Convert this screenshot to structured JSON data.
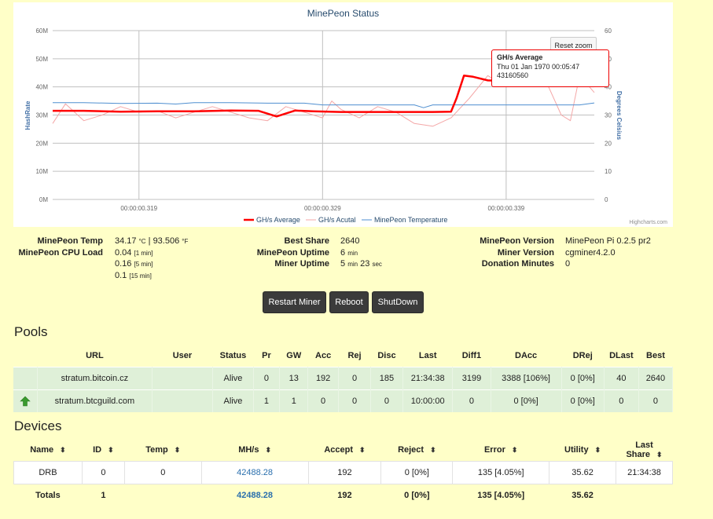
{
  "chart": {
    "title": "MinePeon Status",
    "credits": "Highcharts.com",
    "reset_zoom_label": "Reset zoom",
    "tooltip": {
      "series": "GH/s Average",
      "time": "Thu 01 Jan 1970 00:05:47",
      "value": "43160560"
    }
  },
  "chart_data": {
    "type": "line",
    "title": "MinePeon Status",
    "xlabel": "",
    "ylabel": "HashRate",
    "y2label": "Degrees Celsius",
    "x_ticks": [
      "00:00:00.319",
      "00:00:00.329",
      "00:00:00.339"
    ],
    "y_ticks": [
      "0M",
      "10M",
      "20M",
      "30M",
      "40M",
      "50M",
      "60M"
    ],
    "y2_ticks": [
      "0",
      "10",
      "20",
      "30",
      "40",
      "50",
      "60"
    ],
    "ylim": [
      0,
      60000000
    ],
    "y2lim": [
      0,
      60
    ],
    "xlim": [
      0.3143,
      0.3438
    ],
    "grid": true,
    "legend_placement": "bottom",
    "colors": {
      "average": "#ff0000",
      "actual": "#f4a7a7",
      "temperature": "#4f8fd0"
    },
    "series": [
      {
        "name": "GH/s Average",
        "axis": "left",
        "x": [
          0.3143,
          0.316,
          0.318,
          0.32,
          0.322,
          0.324,
          0.3255,
          0.3265,
          0.3275,
          0.3285,
          0.33,
          0.332,
          0.334,
          0.335,
          0.336,
          0.3363,
          0.3367,
          0.3372,
          0.338,
          0.3392,
          0.3405,
          0.342,
          0.3438
        ],
        "values": [
          31500000,
          31500000,
          31200000,
          31300000,
          31300000,
          31600000,
          31500000,
          29500000,
          31600000,
          31300000,
          31100000,
          31100000,
          31100000,
          31100000,
          31200000,
          36000000,
          44000000,
          43600000,
          42300000,
          42000000,
          42000000,
          42300000,
          43160560
        ]
      },
      {
        "name": "GH/s Acutal",
        "axis": "left",
        "x": [
          0.3143,
          0.315,
          0.316,
          0.317,
          0.318,
          0.319,
          0.32,
          0.321,
          0.322,
          0.323,
          0.324,
          0.325,
          0.326,
          0.327,
          0.328,
          0.329,
          0.3295,
          0.33,
          0.331,
          0.332,
          0.333,
          0.334,
          0.335,
          0.336,
          0.337,
          0.338,
          0.339,
          0.34,
          0.341,
          0.342,
          0.3425,
          0.343,
          0.3438
        ],
        "values": [
          27000000,
          34000000,
          28000000,
          30000000,
          33000000,
          31000000,
          31500000,
          29000000,
          31000000,
          33000000,
          31000000,
          29000000,
          28000000,
          33000000,
          31000000,
          29000000,
          35000000,
          32000000,
          29000000,
          33000000,
          31000000,
          27000000,
          26000000,
          29000000,
          36000000,
          44000000,
          40000000,
          42000000,
          44500000,
          30000000,
          28000000,
          44000000,
          38000000
        ]
      },
      {
        "name": "MinePeon Temperature",
        "axis": "right",
        "x": [
          0.3143,
          0.316,
          0.318,
          0.32,
          0.321,
          0.322,
          0.324,
          0.326,
          0.328,
          0.329,
          0.33,
          0.332,
          0.334,
          0.3345,
          0.335,
          0.336,
          0.338,
          0.34,
          0.342,
          0.343,
          0.3438
        ],
        "values": [
          34.4,
          34.4,
          34.1,
          34.2,
          33.9,
          34.4,
          34.4,
          34.2,
          34.2,
          33.6,
          33.6,
          33.6,
          33.6,
          32.6,
          33.6,
          33.6,
          33.6,
          33.6,
          33.6,
          33.6,
          34.3
        ]
      }
    ]
  },
  "stats": {
    "temp_label": "MinePeon Temp",
    "temp_c": "34.17",
    "temp_c_unit": "°C",
    "temp_sep": "|",
    "temp_f": "93.506",
    "temp_f_unit": "°F",
    "cpu_label": "MinePeon CPU Load",
    "cpu_1": "0.04",
    "cpu_1_unit": "[1 min]",
    "cpu_5": "0.16",
    "cpu_5_unit": "[5 min]",
    "cpu_15": "0.1",
    "cpu_15_unit": "[15 min]",
    "best_share_label": "Best Share",
    "best_share": "2640",
    "uptime_label": "MinePeon Uptime",
    "uptime_value": "6",
    "uptime_unit": "min",
    "miner_uptime_label": "Miner Uptime",
    "miner_uptime_min": "5",
    "miner_uptime_min_unit": "min",
    "miner_uptime_sec": "23",
    "miner_uptime_sec_unit": "sec",
    "version_label": "MinePeon Version",
    "version": "MinePeon Pi 0.2.5 pr2",
    "miner_version_label": "Miner Version",
    "miner_version": "cgminer4.2.0",
    "donation_label": "Donation Minutes",
    "donation": "0"
  },
  "buttons": {
    "restart": "Restart Miner",
    "reboot": "Reboot",
    "shutdown": "ShutDown"
  },
  "pools": {
    "title": "Pools",
    "headers": [
      "URL",
      "User",
      "Status",
      "Pr",
      "GW",
      "Acc",
      "Rej",
      "Disc",
      "Last",
      "Diff1",
      "DAcc",
      "DRej",
      "DLast",
      "Best"
    ],
    "rows": [
      {
        "url": "stratum.bitcoin.cz",
        "user": "",
        "status": "Alive",
        "pr": "0",
        "gw": "13",
        "acc": "192",
        "rej": "0",
        "disc": "185",
        "last": "21:34:38",
        "diff1": "3199",
        "dacc": "3388 [106%]",
        "drej": "0 [0%]",
        "dlast": "40",
        "best": "2640"
      },
      {
        "url": "stratum.btcguild.com",
        "user": "",
        "status": "Alive",
        "pr": "1",
        "gw": "1",
        "acc": "0",
        "rej": "0",
        "disc": "0",
        "last": "10:00:00",
        "diff1": "0",
        "dacc": "0 [0%]",
        "drej": "0 [0%]",
        "dlast": "0",
        "best": "0"
      }
    ]
  },
  "devices": {
    "title": "Devices",
    "headers": [
      "Name",
      "ID",
      "Temp",
      "MH/s",
      "Accept",
      "Reject",
      "Error",
      "Utility",
      "Last Share"
    ],
    "sort_icon": "⬍",
    "rows": [
      {
        "name": "DRB",
        "id": "0",
        "temp": "0",
        "mhs": "42488.28",
        "accept": "192",
        "reject": "0 [0%]",
        "error": "135 [4.05%]",
        "utility": "35.62",
        "last_share": "21:34:38"
      }
    ],
    "totals": {
      "name": "Totals",
      "id": "1",
      "temp": "",
      "mhs": "42488.28",
      "accept": "192",
      "reject": "0 [0%]",
      "error": "135 [4.05%]",
      "utility": "35.62",
      "last_share": ""
    }
  }
}
